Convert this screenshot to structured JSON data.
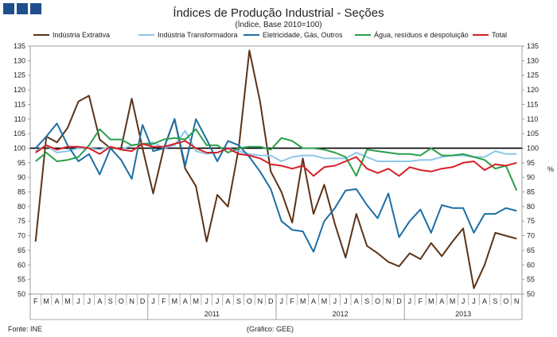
{
  "header": {
    "title": "Índices de Produção Industrial - Seções",
    "subtitle": "(Índice, Base 2010=100)"
  },
  "footer": {
    "source": "Fonte: INE",
    "credit": "(Gráfico: GEE)"
  },
  "logo_color": "#1f4e8c",
  "chart_data": {
    "type": "line",
    "title": "Índices de Produção Industrial - Seções",
    "subtitle": "(Índice, Base 2010=100)",
    "ylabel_right": "%",
    "ylim": [
      50,
      135
    ],
    "yticks": [
      50,
      55,
      60,
      65,
      70,
      75,
      80,
      85,
      90,
      95,
      100,
      105,
      110,
      115,
      120,
      125,
      130,
      135
    ],
    "reference_line": 100,
    "legend_position": "top",
    "categories": [
      "F",
      "M",
      "A",
      "M",
      "J",
      "J",
      "A",
      "S",
      "O",
      "N",
      "D",
      "J",
      "F",
      "M",
      "A",
      "M",
      "J",
      "J",
      "A",
      "S",
      "O",
      "N",
      "D",
      "J",
      "F",
      "M",
      "A",
      "M",
      "J",
      "J",
      "A",
      "S",
      "O",
      "N",
      "D",
      "J",
      "F",
      "M",
      "A",
      "M",
      "J",
      "J",
      "A",
      "S",
      "O",
      "N"
    ],
    "years": [
      {
        "label": "2011",
        "start": 11,
        "end": 22
      },
      {
        "label": "2012",
        "start": 23,
        "end": 34
      },
      {
        "label": "2013",
        "start": 35,
        "end": 45
      }
    ],
    "series": [
      {
        "name": "Indústria Extrativa",
        "color": "#5c3317",
        "values": [
          68,
          104,
          102,
          107,
          116,
          118,
          103,
          100,
          100,
          117,
          100,
          84.5,
          100,
          110,
          93,
          87,
          68,
          84,
          80,
          100,
          133.5,
          116,
          92,
          85,
          74.5,
          96.5,
          77.5,
          87.5,
          74,
          62.5,
          77.5,
          66.5,
          64,
          61,
          59.5,
          64,
          62,
          67.5,
          63,
          68,
          72.5,
          52,
          60,
          71,
          70,
          69
        ]
      },
      {
        "name": "Indústria Transformadora",
        "color": "#8dc6ea",
        "values": [
          99,
          101,
          98.5,
          99,
          100,
          100,
          99.5,
          100.5,
          99.5,
          101,
          101.5,
          102,
          100,
          101,
          106,
          99,
          98,
          98.5,
          100,
          99,
          98,
          97.5,
          97.5,
          95.5,
          97,
          97.5,
          97.5,
          96.5,
          96.5,
          96.5,
          98.5,
          97,
          95.5,
          95.5,
          95.5,
          95.5,
          96,
          96,
          97,
          97.5,
          97.5,
          97,
          97,
          99,
          98,
          98
        ]
      },
      {
        "name": "Eletricidade, Gás, Outros",
        "color": "#1d6fa5",
        "values": [
          100,
          104,
          108.5,
          101,
          95.5,
          98,
          91,
          100,
          96,
          89.5,
          108,
          99,
          100,
          110,
          94,
          110,
          103,
          95.5,
          102.5,
          101,
          97,
          92,
          86,
          75,
          72,
          71.5,
          64.5,
          75,
          79.5,
          85.5,
          86,
          80.5,
          76,
          84.5,
          69.5,
          75,
          79,
          71,
          80.5,
          79.5,
          79.5,
          71,
          77.5,
          77.5,
          79.5,
          78.5
        ]
      },
      {
        "name": "Água, resíduos e despoluição",
        "color": "#2aa04a",
        "values": [
          95.5,
          98.5,
          95.5,
          96,
          97,
          101,
          106.5,
          103,
          103,
          101,
          101.5,
          101.5,
          103,
          103.5,
          103,
          106.5,
          101,
          101,
          98.5,
          100,
          100.5,
          100.5,
          99.5,
          103.5,
          102.5,
          100,
          100,
          99.5,
          98.5,
          97,
          90.5,
          99.5,
          99,
          98.5,
          98,
          98,
          97.5,
          100,
          97.5,
          97.5,
          98,
          97,
          96,
          93,
          94,
          85.5
        ]
      },
      {
        "name": "Total",
        "color": "#d62027",
        "values": [
          98.5,
          101,
          99.5,
          100.5,
          100.5,
          100,
          98,
          100.5,
          99.5,
          99,
          101.5,
          100.5,
          100.5,
          101.5,
          102.5,
          100,
          98.5,
          98.5,
          100,
          98,
          97.5,
          96.5,
          94.5,
          94,
          93,
          94,
          90.5,
          93.5,
          94,
          95.5,
          97,
          93,
          91.5,
          93,
          90.5,
          93.5,
          92.5,
          92,
          93,
          93.5,
          95,
          95.5,
          92.5,
          94.5,
          94,
          95
        ]
      }
    ]
  }
}
